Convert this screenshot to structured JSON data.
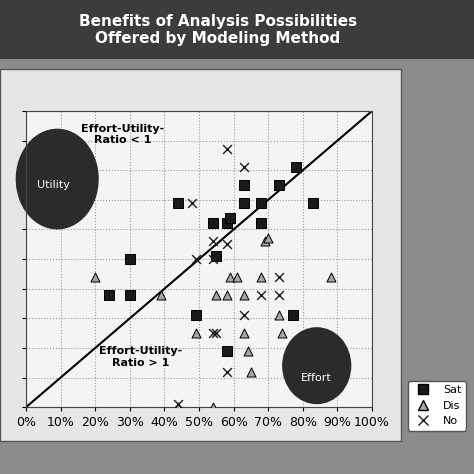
{
  "chart_data": {
    "type": "scatter",
    "title": "Benefits of Analysis Possibilities\nOffered by Modeling Method",
    "xlim": [
      0,
      100
    ],
    "ylim": [
      0,
      100
    ],
    "xticks": [
      {
        "value": 0,
        "label": "0%"
      },
      {
        "value": 10,
        "label": "10%"
      },
      {
        "value": 20,
        "label": "20%"
      },
      {
        "value": 30,
        "label": "30%"
      },
      {
        "value": 40,
        "label": "40%"
      },
      {
        "value": 50,
        "label": "50%"
      },
      {
        "value": 60,
        "label": "60%"
      },
      {
        "value": 70,
        "label": "70%"
      },
      {
        "value": 80,
        "label": "80%"
      },
      {
        "value": 90,
        "label": "90%"
      },
      {
        "value": 100,
        "label": "100%"
      }
    ],
    "yticks": [
      0,
      10,
      20,
      30,
      40,
      50,
      60,
      70,
      80,
      90,
      100
    ],
    "tick_labels": "x",
    "grid": true,
    "legend": "lower right",
    "annotations": [
      "Effort-Utility-\nRatio < 1",
      "Effort-Utility-\nRatio > 1",
      "Utility",
      "Effort"
    ],
    "series": [
      {
        "name": "Sat",
        "color": "#1a1a1a",
        "marker": "square",
        "x": [
          44,
          63,
          78,
          73,
          63,
          68,
          83,
          54,
          58,
          59,
          68,
          30,
          55,
          24,
          30,
          49,
          77,
          58
        ],
        "values": [
          69,
          75,
          81,
          75,
          69,
          69,
          69,
          62,
          62,
          64,
          62,
          50,
          51,
          38,
          38,
          31,
          31,
          19
        ]
      },
      {
        "name": "Dis",
        "color": "#a6a6a6",
        "marker": "triangle",
        "x": [
          20,
          39,
          59,
          55,
          58,
          61,
          63,
          68,
          69,
          70,
          88,
          73,
          49,
          63,
          64,
          65,
          74,
          44,
          54
        ],
        "values": [
          44,
          38,
          44,
          38,
          38,
          44,
          38,
          44,
          56,
          57,
          44,
          31,
          25,
          25,
          19,
          12,
          25,
          0,
          0
        ]
      },
      {
        "name": "No",
        "color": "#1a1a1a",
        "marker": "x",
        "x": [
          58,
          63,
          48,
          54,
          49,
          58,
          54,
          73,
          63,
          68,
          73,
          54,
          55,
          58,
          44
        ],
        "values": [
          87,
          81,
          69,
          56,
          50,
          55,
          50,
          44,
          31,
          38,
          38,
          25,
          25,
          12,
          1
        ]
      }
    ]
  }
}
